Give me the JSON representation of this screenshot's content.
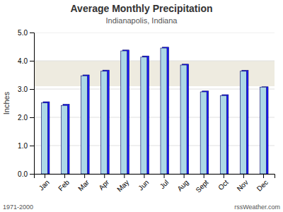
{
  "chart_data": {
    "type": "bar",
    "title": "Average Monthly Precipitation",
    "subtitle": "Indianapolis, Indiana",
    "ylabel": "Inches",
    "footer_left": "1971-2000",
    "footer_right": "rssWeather.com",
    "categories": [
      "Jan",
      "Feb",
      "Mar",
      "Apr",
      "May",
      "Jun",
      "Jul",
      "Aug",
      "Sept",
      "Oct",
      "Nov",
      "Dec"
    ],
    "series": [
      {
        "color": "#1a1aff",
        "values": [
          2.55,
          2.46,
          3.5,
          3.67,
          4.38,
          4.17,
          4.48,
          3.88,
          2.93,
          2.8,
          3.66,
          3.08
        ]
      },
      {
        "color": "#add8e6",
        "values": [
          2.51,
          2.42,
          3.47,
          3.63,
          4.35,
          4.13,
          4.45,
          3.85,
          2.9,
          2.77,
          3.63,
          3.07
        ]
      }
    ],
    "shaded_band": {
      "range": [
        3.1,
        4.0
      ],
      "color": "#eeebe0"
    },
    "ylim": [
      0.0,
      5.0
    ],
    "yticks": [
      {
        "value": 0.0,
        "label": "0.0"
      },
      {
        "value": 1.0,
        "label": "1.0"
      },
      {
        "value": 2.0,
        "label": "2.0"
      },
      {
        "value": 3.0,
        "label": "3.0"
      },
      {
        "value": 4.0,
        "label": "4.0"
      },
      {
        "value": 5.0,
        "label": "5.0"
      }
    ],
    "grid": true
  }
}
